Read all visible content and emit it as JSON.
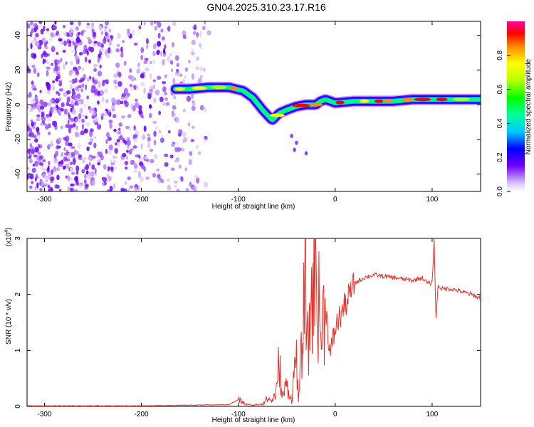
{
  "title": "GN04.2025.310.23.17.R16",
  "chart_data": [
    {
      "type": "heatmap",
      "xlabel": "Height of straight line (km)",
      "ylabel": "Frequency (Hz)",
      "xlim": [
        -318,
        150
      ],
      "ylim": [
        -50,
        48
      ],
      "xticks": [
        -300,
        -200,
        -100,
        0,
        100
      ],
      "yticks": [
        -40,
        -20,
        0,
        20,
        40
      ],
      "colorbar": {
        "label": "Normalized spectral amplitude",
        "ticks": [
          0.0,
          0.2,
          0.4,
          0.6,
          0.8
        ],
        "range": [
          0,
          1
        ]
      },
      "ridge": {
        "x": [
          -165,
          -150,
          -130,
          -110,
          -95,
          -85,
          -75,
          -65,
          -58,
          -50,
          -40,
          -30,
          -20,
          -15,
          -10,
          0,
          20,
          40,
          60,
          80,
          100,
          120,
          150
        ],
        "y": [
          9,
          9,
          10,
          10,
          8,
          4,
          -3,
          -9,
          -5,
          -3,
          -1,
          0,
          0,
          2,
          3,
          1,
          2,
          2,
          2,
          3,
          3,
          3,
          3
        ]
      },
      "noise_region_x": [
        -318,
        -130
      ]
    },
    {
      "type": "line",
      "xlabel": "Height of straight line (km)",
      "ylabel": "SNR (10 * v/v)",
      "exponent_label": "(x10",
      "exponent_sup": "4",
      "exponent_close": ")",
      "xlim": [
        -318,
        150
      ],
      "ylim": [
        0,
        3
      ],
      "xticks": [
        -300,
        -200,
        -100,
        0,
        100
      ],
      "yticks": [
        0,
        1,
        2,
        3
      ],
      "color": "#e8302a",
      "series": [
        {
          "x": [
            -318,
            -200,
            -110,
            -100,
            -95,
            -90,
            -85,
            -75,
            -70,
            -65,
            -60,
            -58,
            -55,
            -50,
            -45,
            -40,
            -38,
            -35,
            -30,
            -28,
            -25,
            -20,
            -15,
            -10,
            -5,
            0,
            5,
            10,
            15,
            20,
            30,
            40,
            60,
            80,
            90,
            95,
            100,
            102,
            104,
            106,
            110,
            120,
            130,
            140,
            150
          ],
          "y": [
            0.01,
            0.01,
            0.03,
            0.12,
            0.06,
            0.03,
            0.02,
            0.05,
            0.14,
            0.1,
            0.3,
            0.9,
            0.15,
            0.4,
            0.1,
            1.0,
            0.05,
            0.9,
            2.4,
            0.8,
            1.9,
            2.5,
            1.3,
            1.8,
            0.9,
            1.4,
            1.6,
            1.8,
            2.0,
            2.2,
            2.3,
            2.35,
            2.3,
            2.25,
            2.3,
            2.2,
            2.2,
            3.0,
            1.55,
            2.15,
            2.1,
            2.1,
            2.05,
            2.0,
            1.93
          ]
        }
      ]
    }
  ]
}
